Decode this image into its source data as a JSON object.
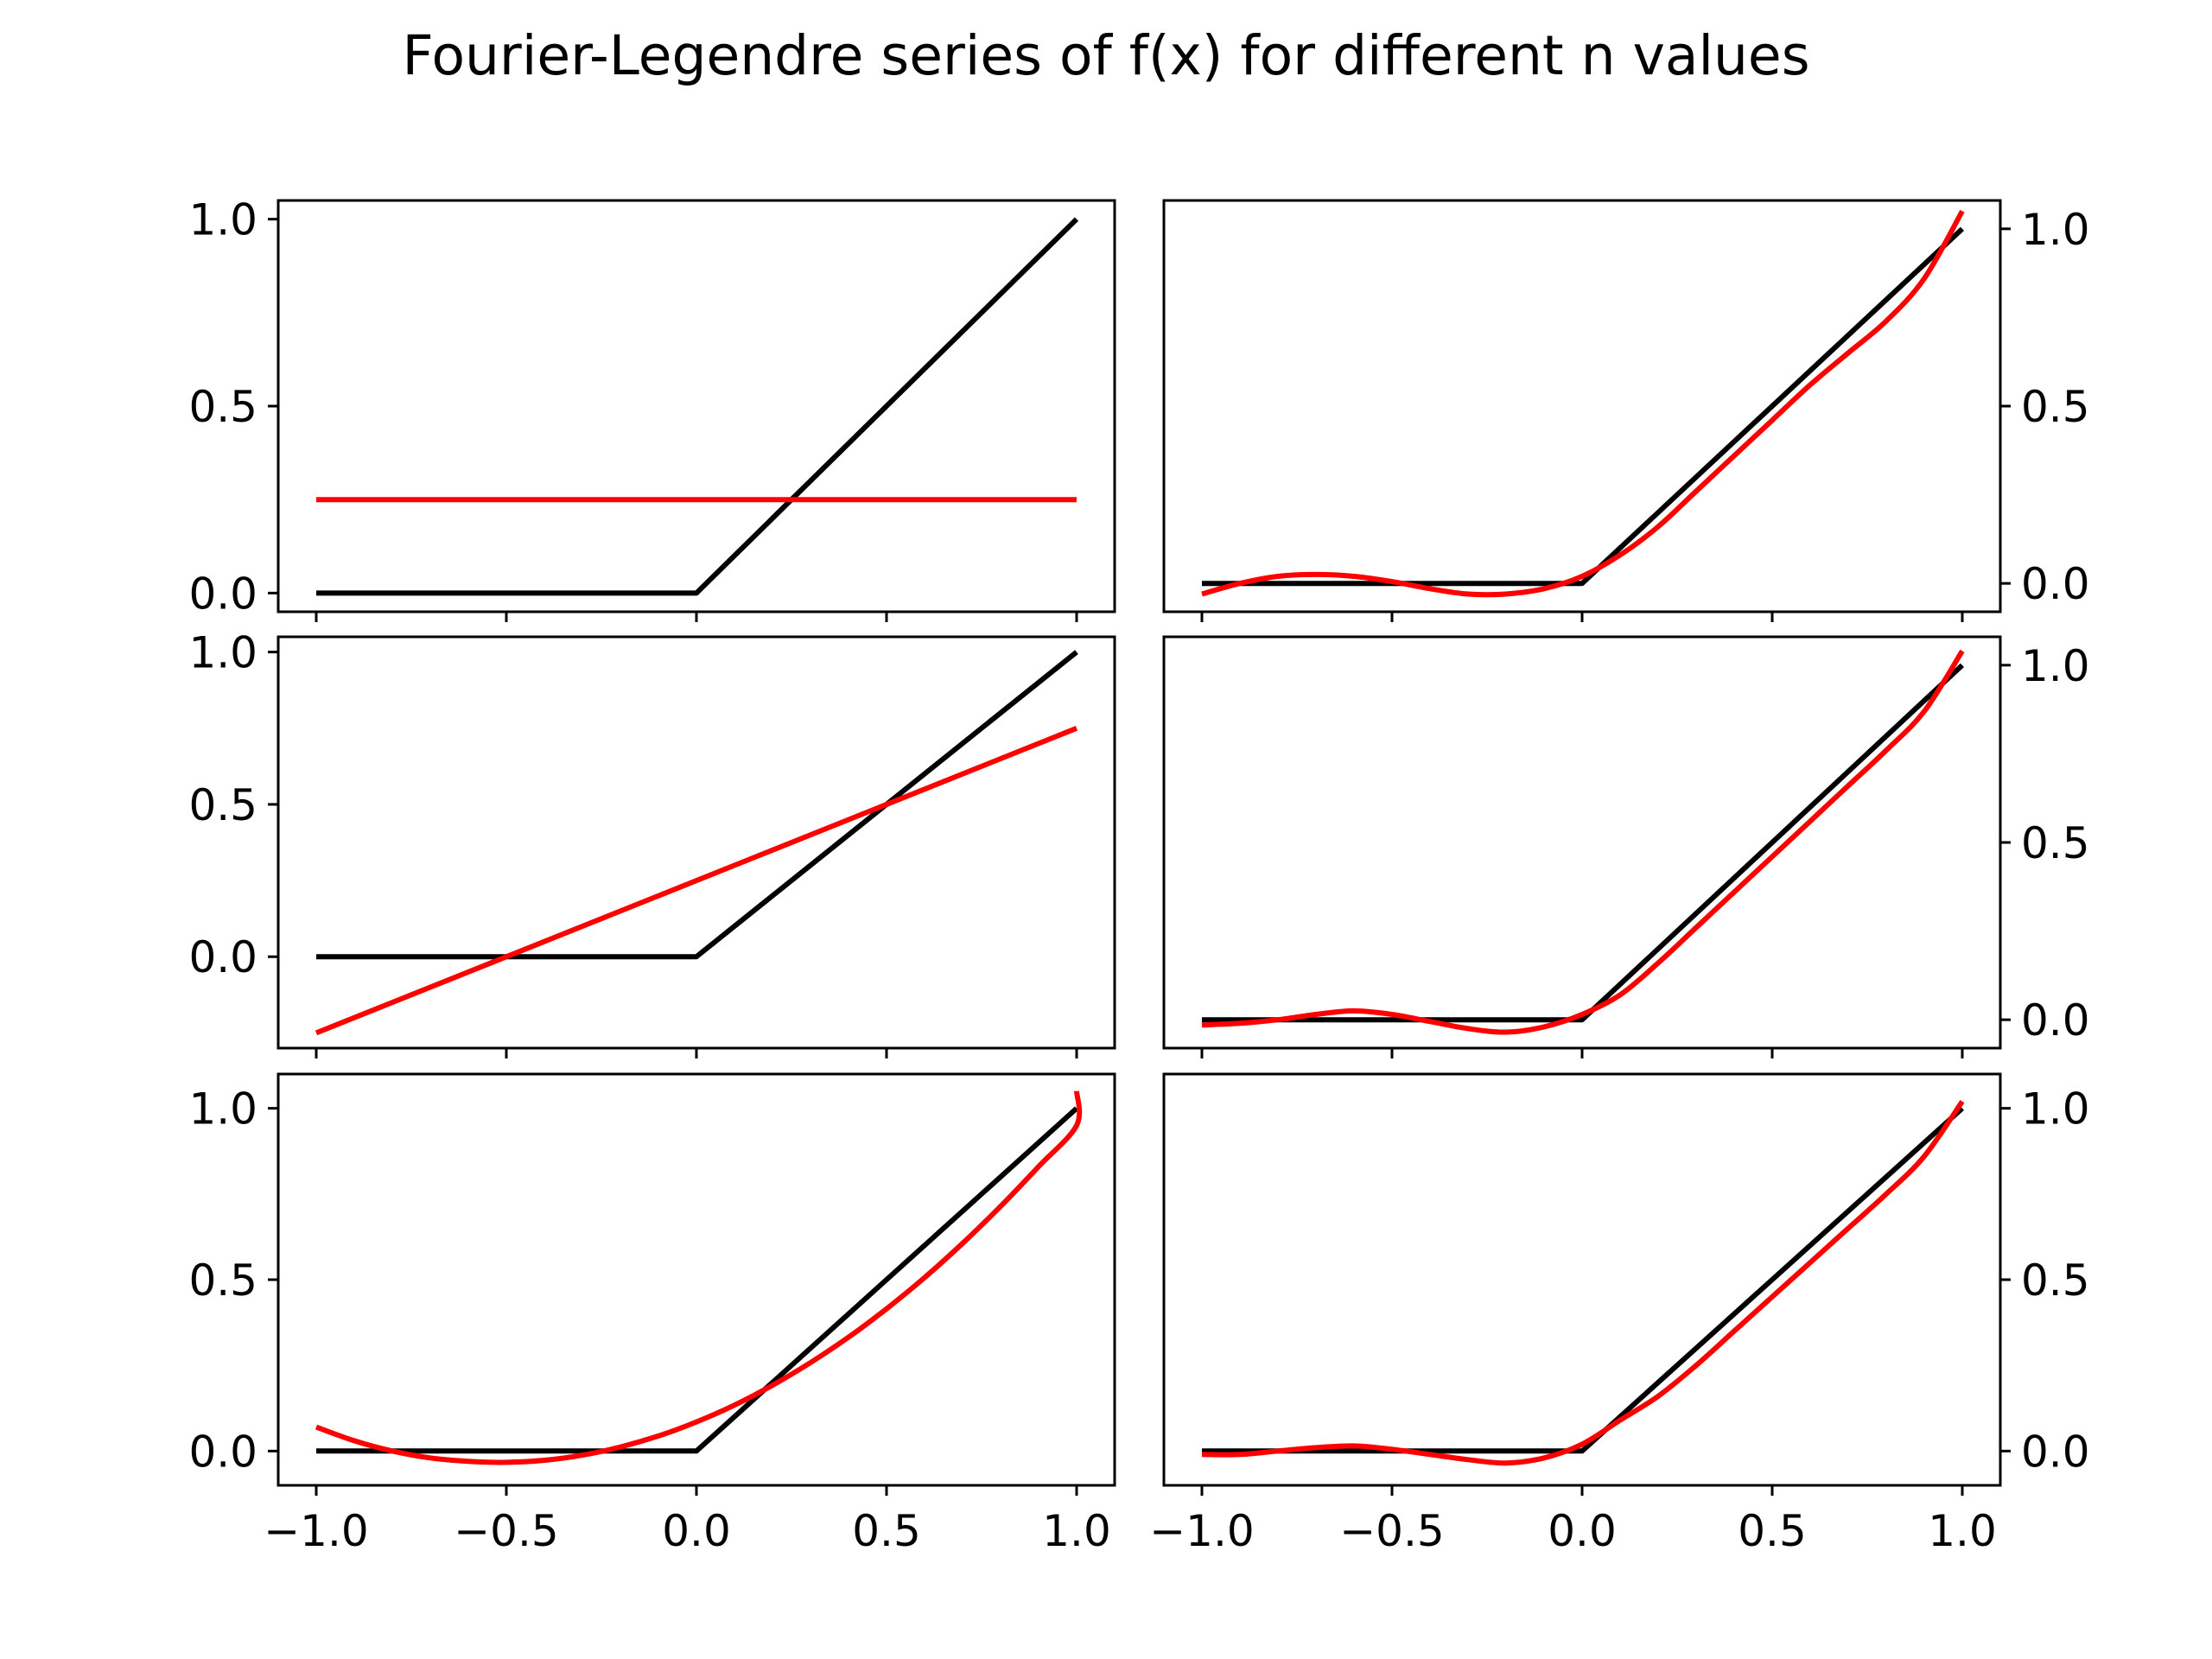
{
  "chart_data": {
    "type": "line",
    "title": "Fourier-Legendre series of f(x) for different n values",
    "colors": {
      "function": "#000000",
      "approximation": "#ff0000"
    },
    "grid": false,
    "layout": "3x2 grid of subplots; left column y-axis ticks on left, right column y-axis ticks on right; x tick labels on bottom row only",
    "x_tick_labels": [
      "−1.0",
      "−0.5",
      "0.0",
      "0.5",
      "1.0"
    ],
    "x_ticks": [
      -1.0,
      -0.5,
      0.0,
      0.5,
      1.0
    ],
    "xlim": [
      -1.1,
      1.1
    ],
    "panels": [
      {
        "id": "top-left",
        "ylim": [
          -0.05,
          1.05
        ],
        "y_ticks": [
          0.0,
          0.5,
          1.0
        ],
        "y_tick_labels": [
          "0.0",
          "0.5",
          "1.0"
        ],
        "y_axis_side": "left",
        "show_x_labels": false,
        "function_points": [
          [
            -1.0,
            0.0
          ],
          [
            0.0,
            0.0
          ],
          [
            1.0,
            1.0
          ]
        ],
        "approx_points": [
          [
            -1.0,
            0.25
          ],
          [
            1.0,
            0.25
          ]
        ]
      },
      {
        "id": "top-right",
        "ylim": [
          -0.08,
          1.08
        ],
        "y_ticks": [
          0.0,
          0.5,
          1.0
        ],
        "y_tick_labels": [
          "0.0",
          "0.5",
          "1.0"
        ],
        "y_axis_side": "right",
        "show_x_labels": false,
        "function_points": [
          [
            -1.0,
            0.0
          ],
          [
            0.0,
            0.0
          ],
          [
            1.0,
            1.0
          ]
        ],
        "approx_points": [
          [
            -1.0,
            -0.03
          ],
          [
            -0.9,
            0.0
          ],
          [
            -0.8,
            0.02
          ],
          [
            -0.7,
            0.025
          ],
          [
            -0.6,
            0.02
          ],
          [
            -0.5,
            0.005
          ],
          [
            -0.4,
            -0.015
          ],
          [
            -0.3,
            -0.03
          ],
          [
            -0.2,
            -0.03
          ],
          [
            -0.1,
            -0.015
          ],
          [
            0.0,
            0.02
          ],
          [
            0.1,
            0.08
          ],
          [
            0.2,
            0.16
          ],
          [
            0.3,
            0.26
          ],
          [
            0.4,
            0.36
          ],
          [
            0.5,
            0.46
          ],
          [
            0.6,
            0.56
          ],
          [
            0.7,
            0.65
          ],
          [
            0.8,
            0.74
          ],
          [
            0.9,
            0.86
          ],
          [
            1.0,
            1.05
          ]
        ]
      },
      {
        "id": "middle-left",
        "ylim": [
          -0.3,
          1.05
        ],
        "y_ticks": [
          0.0,
          0.5,
          1.0
        ],
        "y_tick_labels": [
          "0.0",
          "0.5",
          "1.0"
        ],
        "y_axis_side": "left",
        "show_x_labels": false,
        "function_points": [
          [
            -1.0,
            0.0
          ],
          [
            0.0,
            0.0
          ],
          [
            1.0,
            1.0
          ]
        ],
        "approx_points": [
          [
            -1.0,
            -0.25
          ],
          [
            1.0,
            0.75
          ]
        ]
      },
      {
        "id": "middle-right",
        "ylim": [
          -0.08,
          1.08
        ],
        "y_ticks": [
          0.0,
          0.5,
          1.0
        ],
        "y_tick_labels": [
          "0.0",
          "0.5",
          "1.0"
        ],
        "y_axis_side": "right",
        "show_x_labels": false,
        "function_points": [
          [
            -1.0,
            0.0
          ],
          [
            0.0,
            0.0
          ],
          [
            1.0,
            1.0
          ]
        ],
        "approx_points": [
          [
            -1.0,
            -0.015
          ],
          [
            -0.9,
            -0.01
          ],
          [
            -0.8,
            0.0
          ],
          [
            -0.7,
            0.015
          ],
          [
            -0.6,
            0.025
          ],
          [
            -0.5,
            0.015
          ],
          [
            -0.4,
            -0.005
          ],
          [
            -0.3,
            -0.025
          ],
          [
            -0.2,
            -0.035
          ],
          [
            -0.1,
            -0.02
          ],
          [
            0.0,
            0.015
          ],
          [
            0.1,
            0.07
          ],
          [
            0.2,
            0.16
          ],
          [
            0.3,
            0.26
          ],
          [
            0.4,
            0.36
          ],
          [
            0.5,
            0.46
          ],
          [
            0.6,
            0.56
          ],
          [
            0.7,
            0.66
          ],
          [
            0.8,
            0.76
          ],
          [
            0.9,
            0.87
          ],
          [
            1.0,
            1.04
          ]
        ]
      },
      {
        "id": "bottom-left",
        "ylim": [
          -0.1,
          1.1
        ],
        "y_ticks": [
          0.0,
          0.5,
          1.0
        ],
        "y_tick_labels": [
          "0.0",
          "0.5",
          "1.0"
        ],
        "y_axis_side": "left",
        "show_x_labels": true,
        "function_points": [
          [
            -1.0,
            0.0
          ],
          [
            0.0,
            0.0
          ],
          [
            1.0,
            1.0
          ]
        ],
        "approx_points": [
          [
            -1.0,
            0.07
          ],
          [
            -0.9,
            0.03
          ],
          [
            -0.8,
            0.0
          ],
          [
            -0.7,
            -0.02
          ],
          [
            -0.6,
            -0.03
          ],
          [
            -0.5,
            -0.033
          ],
          [
            -0.4,
            -0.027
          ],
          [
            -0.3,
            -0.012
          ],
          [
            -0.2,
            0.012
          ],
          [
            -0.1,
            0.044
          ],
          [
            0.0,
            0.085
          ],
          [
            0.1,
            0.134
          ],
          [
            0.2,
            0.192
          ],
          [
            0.3,
            0.258
          ],
          [
            0.4,
            0.332
          ],
          [
            0.5,
            0.415
          ],
          [
            0.6,
            0.506
          ],
          [
            0.7,
            0.606
          ],
          [
            0.8,
            0.714
          ],
          [
            0.9,
            0.83
          ],
          [
            1.0,
            0.95
          ],
          [
            1.0,
            1.05
          ]
        ]
      },
      {
        "id": "bottom-right",
        "ylim": [
          -0.1,
          1.1
        ],
        "y_ticks": [
          0.0,
          0.5,
          1.0
        ],
        "y_tick_labels": [
          "0.0",
          "0.5",
          "1.0"
        ],
        "y_axis_side": "right",
        "show_x_labels": true,
        "function_points": [
          [
            -1.0,
            0.0
          ],
          [
            0.0,
            0.0
          ],
          [
            1.0,
            1.0
          ]
        ],
        "approx_points": [
          [
            -1.0,
            -0.01
          ],
          [
            -0.9,
            -0.01
          ],
          [
            -0.8,
            0.0
          ],
          [
            -0.7,
            0.01
          ],
          [
            -0.6,
            0.015
          ],
          [
            -0.5,
            0.005
          ],
          [
            -0.4,
            -0.01
          ],
          [
            -0.3,
            -0.025
          ],
          [
            -0.2,
            -0.035
          ],
          [
            -0.1,
            -0.02
          ],
          [
            0.0,
            0.02
          ],
          [
            0.1,
            0.09
          ],
          [
            0.2,
            0.16
          ],
          [
            0.3,
            0.25
          ],
          [
            0.4,
            0.35
          ],
          [
            0.5,
            0.45
          ],
          [
            0.6,
            0.55
          ],
          [
            0.7,
            0.65
          ],
          [
            0.8,
            0.75
          ],
          [
            0.9,
            0.86
          ],
          [
            1.0,
            1.02
          ]
        ]
      }
    ]
  }
}
